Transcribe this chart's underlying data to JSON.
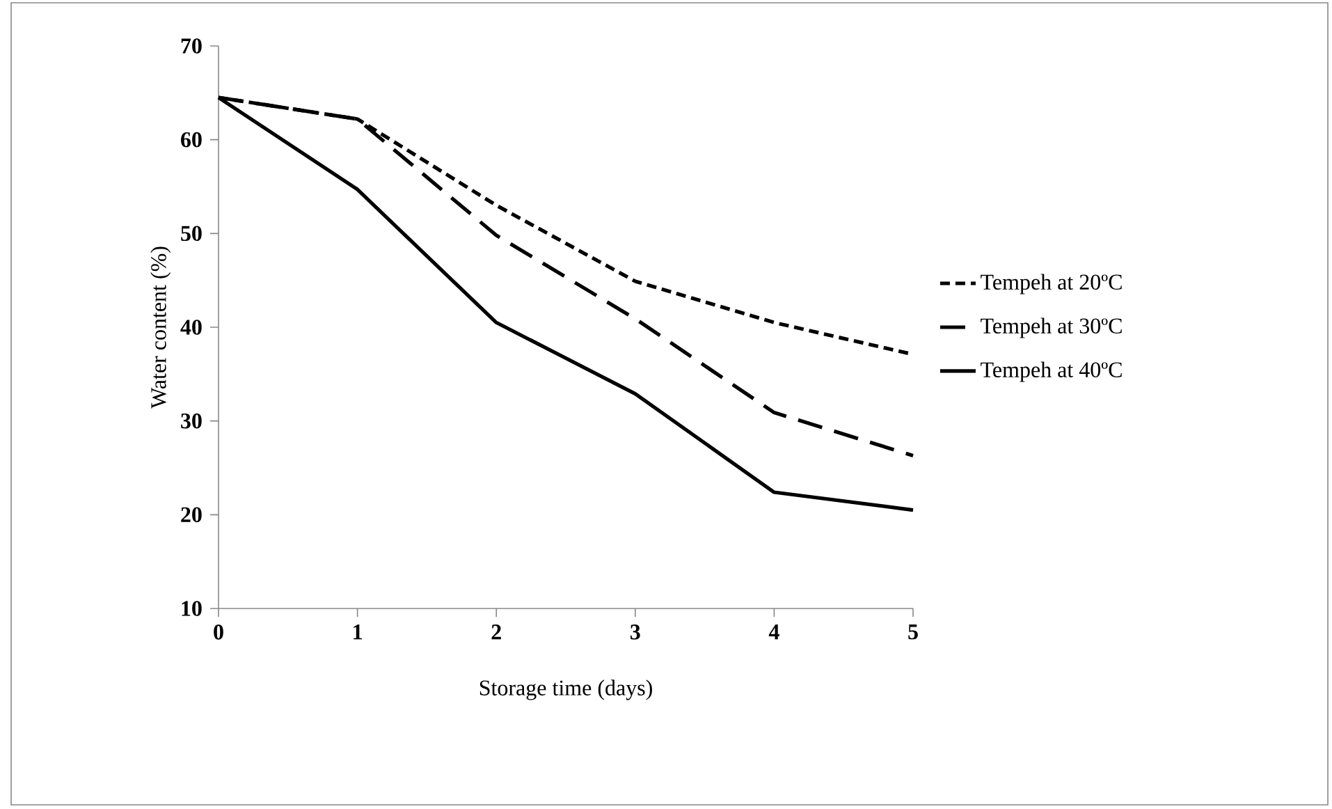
{
  "chart_data": {
    "type": "line",
    "xlabel": "Storage time (days)",
    "ylabel": "Water content (%)",
    "x": [
      0,
      1,
      2,
      3,
      4,
      5
    ],
    "xlim": [
      0,
      5
    ],
    "ylim": [
      10,
      70
    ],
    "xticks": [
      0,
      1,
      2,
      3,
      4,
      5
    ],
    "yticks": [
      10,
      20,
      30,
      40,
      50,
      60,
      70
    ],
    "legend": "right",
    "grid": false,
    "series": [
      {
        "name": "Tempeh at 20ºC",
        "color": "#000000",
        "line_style": "dotted",
        "values": [
          64.5,
          62.2,
          53.0,
          44.9,
          40.5,
          37.1
        ]
      },
      {
        "name": "Tempeh at 30ºC",
        "color": "#000000",
        "line_style": "dashed",
        "values": [
          64.5,
          62.2,
          49.8,
          40.9,
          30.9,
          26.3
        ]
      },
      {
        "name": "Tempeh at 40ºC",
        "color": "#000000",
        "line_style": "solid",
        "values": [
          64.5,
          54.7,
          40.5,
          32.9,
          22.4,
          20.5
        ]
      }
    ]
  }
}
